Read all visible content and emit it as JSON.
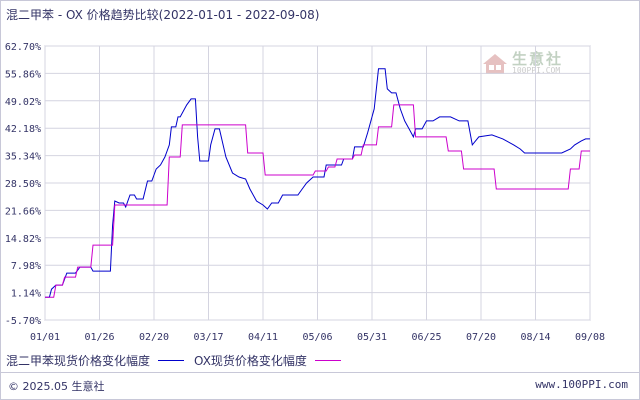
{
  "title": "混二甲苯 - OX 价格趋势比较(2022-01-01 - 2022-09-08)",
  "copyright": "© 2025.05 生意社",
  "site_url": "www.100PPI.com",
  "watermark": {
    "name": "生意社",
    "url": "100PPI.COM"
  },
  "legend": [
    {
      "label": "混二甲苯现货价格变化幅度",
      "color": "#0000cc"
    },
    {
      "label": "OX现货价格变化幅度",
      "color": "#cc00cc"
    }
  ],
  "chart_data": {
    "type": "line",
    "grid": true,
    "ylim": [
      -5.7,
      62.7
    ],
    "yticks": [
      "62.70%",
      "55.86%",
      "49.02%",
      "42.18%",
      "35.34%",
      "28.50%",
      "21.66%",
      "14.82%",
      "7.98%",
      "1.14%",
      "-5.70%"
    ],
    "xlim": [
      "2022-01-01",
      "2022-09-08"
    ],
    "xticks": [
      {
        "date": "2022-01-01",
        "label": "01/01"
      },
      {
        "date": "2022-01-26",
        "label": "01/26"
      },
      {
        "date": "2022-02-20",
        "label": "02/20"
      },
      {
        "date": "2022-03-17",
        "label": "03/17"
      },
      {
        "date": "2022-04-11",
        "label": "04/11"
      },
      {
        "date": "2022-05-06",
        "label": "05/06"
      },
      {
        "date": "2022-05-31",
        "label": "05/31"
      },
      {
        "date": "2022-06-25",
        "label": "06/25"
      },
      {
        "date": "2022-07-20",
        "label": "07/20"
      },
      {
        "date": "2022-08-14",
        "label": "08/14"
      },
      {
        "date": "2022-09-08",
        "label": "09/08"
      }
    ],
    "series": [
      {
        "name": "混二甲苯现货价格变化幅度",
        "color": "#0000cc",
        "points": [
          [
            "2022-01-01",
            0.0
          ],
          [
            "2022-01-03",
            0.0
          ],
          [
            "2022-01-04",
            2.0
          ],
          [
            "2022-01-06",
            3.0
          ],
          [
            "2022-01-09",
            3.0
          ],
          [
            "2022-01-11",
            6.0
          ],
          [
            "2022-01-15",
            6.0
          ],
          [
            "2022-01-17",
            7.5
          ],
          [
            "2022-01-22",
            7.5
          ],
          [
            "2022-01-23",
            6.5
          ],
          [
            "2022-01-31",
            6.5
          ],
          [
            "2022-02-01",
            18.0
          ],
          [
            "2022-02-02",
            24.0
          ],
          [
            "2022-02-04",
            23.5
          ],
          [
            "2022-02-06",
            23.5
          ],
          [
            "2022-02-07",
            22.5
          ],
          [
            "2022-02-09",
            25.5
          ],
          [
            "2022-02-11",
            25.5
          ],
          [
            "2022-02-12",
            24.5
          ],
          [
            "2022-02-15",
            24.5
          ],
          [
            "2022-02-17",
            29.0
          ],
          [
            "2022-02-19",
            29.0
          ],
          [
            "2022-02-21",
            32.0
          ],
          [
            "2022-02-23",
            33.0
          ],
          [
            "2022-02-25",
            35.0
          ],
          [
            "2022-02-27",
            38.0
          ],
          [
            "2022-02-28",
            42.5
          ],
          [
            "2022-03-02",
            42.5
          ],
          [
            "2022-03-03",
            45.0
          ],
          [
            "2022-03-04",
            45.0
          ],
          [
            "2022-03-07",
            48.0
          ],
          [
            "2022-03-09",
            49.5
          ],
          [
            "2022-03-11",
            49.5
          ],
          [
            "2022-03-12",
            40.0
          ],
          [
            "2022-03-13",
            34.0
          ],
          [
            "2022-03-17",
            34.0
          ],
          [
            "2022-03-18",
            38.0
          ],
          [
            "2022-03-20",
            42.0
          ],
          [
            "2022-03-22",
            42.0
          ],
          [
            "2022-03-25",
            35.0
          ],
          [
            "2022-03-28",
            31.0
          ],
          [
            "2022-03-31",
            30.0
          ],
          [
            "2022-04-03",
            29.5
          ],
          [
            "2022-04-05",
            27.0
          ],
          [
            "2022-04-08",
            24.0
          ],
          [
            "2022-04-11",
            23.0
          ],
          [
            "2022-04-13",
            22.0
          ],
          [
            "2022-04-15",
            23.5
          ],
          [
            "2022-04-18",
            23.5
          ],
          [
            "2022-04-20",
            25.5
          ],
          [
            "2022-04-27",
            25.5
          ],
          [
            "2022-04-29",
            27.0
          ],
          [
            "2022-05-01",
            28.5
          ],
          [
            "2022-05-04",
            30.0
          ],
          [
            "2022-05-09",
            30.0
          ],
          [
            "2022-05-10",
            33.0
          ],
          [
            "2022-05-17",
            33.0
          ],
          [
            "2022-05-18",
            34.5
          ],
          [
            "2022-05-22",
            34.5
          ],
          [
            "2022-05-23",
            37.5
          ],
          [
            "2022-05-27",
            37.5
          ],
          [
            "2022-05-29",
            41.0
          ],
          [
            "2022-05-31",
            45.0
          ],
          [
            "2022-06-01",
            47.0
          ],
          [
            "2022-06-03",
            57.0
          ],
          [
            "2022-06-06",
            57.0
          ],
          [
            "2022-06-07",
            52.0
          ],
          [
            "2022-06-09",
            51.0
          ],
          [
            "2022-06-11",
            51.0
          ],
          [
            "2022-06-13",
            47.0
          ],
          [
            "2022-06-15",
            44.0
          ],
          [
            "2022-06-17",
            42.0
          ],
          [
            "2022-06-19",
            40.0
          ],
          [
            "2022-06-20",
            42.0
          ],
          [
            "2022-06-23",
            42.0
          ],
          [
            "2022-06-25",
            44.0
          ],
          [
            "2022-06-28",
            44.0
          ],
          [
            "2022-07-01",
            45.0
          ],
          [
            "2022-07-06",
            45.0
          ],
          [
            "2022-07-10",
            44.0
          ],
          [
            "2022-07-14",
            44.0
          ],
          [
            "2022-07-16",
            38.0
          ],
          [
            "2022-07-19",
            40.0
          ],
          [
            "2022-07-25",
            40.5
          ],
          [
            "2022-07-30",
            39.5
          ],
          [
            "2022-08-04",
            38.0
          ],
          [
            "2022-08-07",
            37.0
          ],
          [
            "2022-08-09",
            36.0
          ],
          [
            "2022-08-26",
            36.0
          ],
          [
            "2022-08-30",
            37.0
          ],
          [
            "2022-09-01",
            38.0
          ],
          [
            "2022-09-04",
            39.0
          ],
          [
            "2022-09-06",
            39.5
          ],
          [
            "2022-09-08",
            39.5
          ]
        ]
      },
      {
        "name": "OX现货价格变化幅度",
        "color": "#cc00cc",
        "points": [
          [
            "2022-01-01",
            0.0
          ],
          [
            "2022-01-05",
            0.0
          ],
          [
            "2022-01-06",
            3.0
          ],
          [
            "2022-01-09",
            3.0
          ],
          [
            "2022-01-10",
            5.0
          ],
          [
            "2022-01-15",
            5.0
          ],
          [
            "2022-01-16",
            7.5
          ],
          [
            "2022-01-22",
            7.5
          ],
          [
            "2022-01-23",
            13.0
          ],
          [
            "2022-02-01",
            13.0
          ],
          [
            "2022-02-02",
            23.0
          ],
          [
            "2022-02-26",
            23.0
          ],
          [
            "2022-02-27",
            35.0
          ],
          [
            "2022-03-04",
            35.0
          ],
          [
            "2022-03-05",
            43.0
          ],
          [
            "2022-04-03",
            43.0
          ],
          [
            "2022-04-04",
            36.0
          ],
          [
            "2022-04-11",
            36.0
          ],
          [
            "2022-04-12",
            30.5
          ],
          [
            "2022-05-04",
            30.5
          ],
          [
            "2022-05-05",
            31.5
          ],
          [
            "2022-05-10",
            31.5
          ],
          [
            "2022-05-11",
            32.5
          ],
          [
            "2022-05-14",
            32.5
          ],
          [
            "2022-05-15",
            34.5
          ],
          [
            "2022-05-22",
            34.5
          ],
          [
            "2022-05-23",
            35.5
          ],
          [
            "2022-05-26",
            35.5
          ],
          [
            "2022-05-27",
            38.0
          ],
          [
            "2022-06-02",
            38.0
          ],
          [
            "2022-06-03",
            42.5
          ],
          [
            "2022-06-09",
            42.5
          ],
          [
            "2022-06-10",
            48.0
          ],
          [
            "2022-06-19",
            48.0
          ],
          [
            "2022-06-20",
            40.0
          ],
          [
            "2022-07-04",
            40.0
          ],
          [
            "2022-07-05",
            36.5
          ],
          [
            "2022-07-11",
            36.5
          ],
          [
            "2022-07-12",
            32.0
          ],
          [
            "2022-07-26",
            32.0
          ],
          [
            "2022-07-27",
            27.0
          ],
          [
            "2022-08-29",
            27.0
          ],
          [
            "2022-08-30",
            32.0
          ],
          [
            "2022-09-03",
            32.0
          ],
          [
            "2022-09-04",
            36.5
          ],
          [
            "2022-09-08",
            36.5
          ]
        ]
      }
    ]
  }
}
